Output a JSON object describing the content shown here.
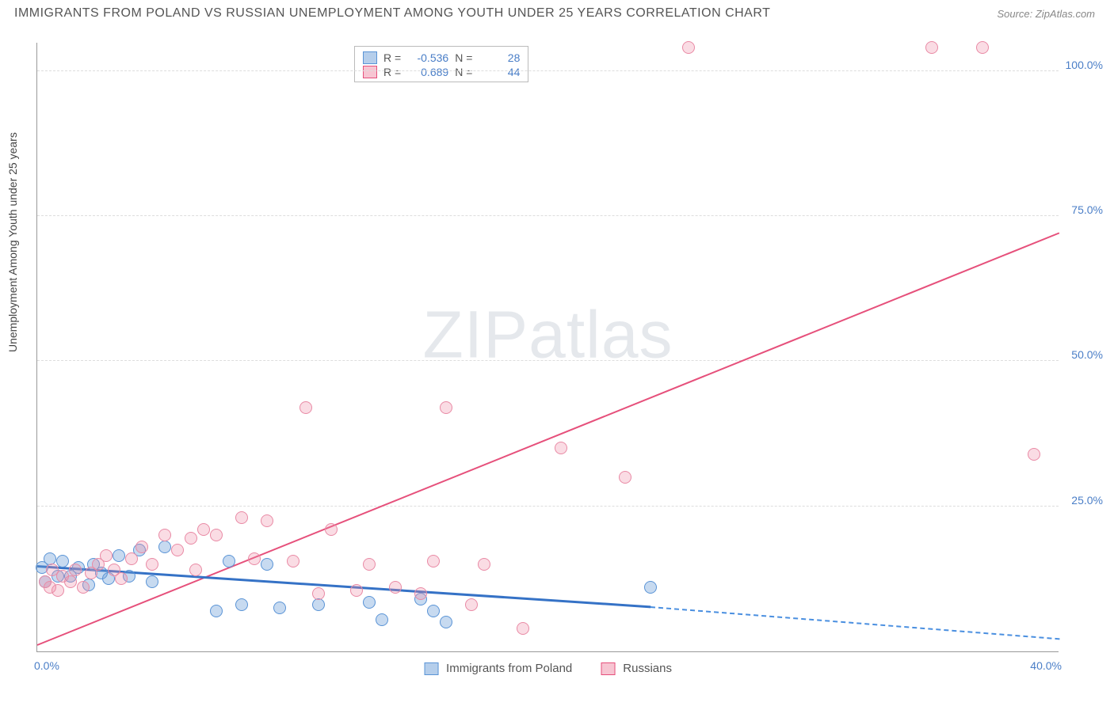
{
  "title": "IMMIGRANTS FROM POLAND VS RUSSIAN UNEMPLOYMENT AMONG YOUTH UNDER 25 YEARS CORRELATION CHART",
  "source": "Source: ZipAtlas.com",
  "y_axis_label": "Unemployment Among Youth under 25 years",
  "watermark_bold": "ZIP",
  "watermark_thin": "atlas",
  "chart": {
    "type": "scatter",
    "xlim": [
      0,
      40
    ],
    "ylim": [
      0,
      105
    ],
    "x_ticks": [
      {
        "value": 0,
        "label": "0.0%",
        "pos": "left"
      },
      {
        "value": 40,
        "label": "40.0%",
        "pos": "right"
      }
    ],
    "y_ticks": [
      {
        "value": 25,
        "label": "25.0%"
      },
      {
        "value": 50,
        "label": "50.0%"
      },
      {
        "value": 75,
        "label": "75.0%"
      },
      {
        "value": 100,
        "label": "100.0%"
      }
    ],
    "grid_color": "#dddddd",
    "background_color": "#ffffff",
    "series": [
      {
        "name": "Immigrants from Poland",
        "color_fill": "rgba(108,158,216,0.38)",
        "color_stroke": "#5a94d6",
        "line_color": "#3572c6",
        "marker_radius": 8,
        "R": "-0.536",
        "N": "28",
        "trend": {
          "x1": 0,
          "y1": 14.5,
          "x2": 24,
          "y2": 7.5,
          "x2_ext": 40,
          "y2_ext": 2.0
        },
        "points": [
          {
            "x": 0.2,
            "y": 14.5
          },
          {
            "x": 0.3,
            "y": 12
          },
          {
            "x": 0.5,
            "y": 16
          },
          {
            "x": 0.8,
            "y": 13
          },
          {
            "x": 1.0,
            "y": 15.5
          },
          {
            "x": 1.3,
            "y": 13
          },
          {
            "x": 1.6,
            "y": 14.5
          },
          {
            "x": 2.0,
            "y": 11.5
          },
          {
            "x": 2.2,
            "y": 15
          },
          {
            "x": 2.5,
            "y": 13.5
          },
          {
            "x": 2.8,
            "y": 12.5
          },
          {
            "x": 3.2,
            "y": 16.5
          },
          {
            "x": 3.6,
            "y": 13
          },
          {
            "x": 4.0,
            "y": 17.5
          },
          {
            "x": 4.5,
            "y": 12
          },
          {
            "x": 5.0,
            "y": 18
          },
          {
            "x": 7.0,
            "y": 7
          },
          {
            "x": 7.5,
            "y": 15.5
          },
          {
            "x": 8.0,
            "y": 8
          },
          {
            "x": 9.0,
            "y": 15
          },
          {
            "x": 9.5,
            "y": 7.5
          },
          {
            "x": 11.0,
            "y": 8
          },
          {
            "x": 13.0,
            "y": 8.5
          },
          {
            "x": 13.5,
            "y": 5.5
          },
          {
            "x": 15.0,
            "y": 9
          },
          {
            "x": 15.5,
            "y": 7
          },
          {
            "x": 16.0,
            "y": 5
          },
          {
            "x": 24.0,
            "y": 11
          }
        ]
      },
      {
        "name": "Russians",
        "color_fill": "rgba(240,140,165,0.30)",
        "color_stroke": "#e98aa5",
        "line_color": "#e6507b",
        "marker_radius": 8,
        "R": "0.689",
        "N": "44",
        "trend": {
          "x1": 0,
          "y1": 1,
          "x2": 40,
          "y2": 72
        },
        "points": [
          {
            "x": 0.3,
            "y": 12
          },
          {
            "x": 0.5,
            "y": 11
          },
          {
            "x": 0.6,
            "y": 14
          },
          {
            "x": 0.8,
            "y": 10.5
          },
          {
            "x": 1.0,
            "y": 13
          },
          {
            "x": 1.3,
            "y": 12
          },
          {
            "x": 1.5,
            "y": 14
          },
          {
            "x": 1.8,
            "y": 11
          },
          {
            "x": 2.1,
            "y": 13.5
          },
          {
            "x": 2.4,
            "y": 15
          },
          {
            "x": 2.7,
            "y": 16.5
          },
          {
            "x": 3.0,
            "y": 14
          },
          {
            "x": 3.3,
            "y": 12.5
          },
          {
            "x": 3.7,
            "y": 16
          },
          {
            "x": 4.1,
            "y": 18
          },
          {
            "x": 4.5,
            "y": 15
          },
          {
            "x": 5.0,
            "y": 20
          },
          {
            "x": 5.5,
            "y": 17.5
          },
          {
            "x": 6.0,
            "y": 19.5
          },
          {
            "x": 6.5,
            "y": 21
          },
          {
            "x": 7.0,
            "y": 20
          },
          {
            "x": 8.0,
            "y": 23
          },
          {
            "x": 8.5,
            "y": 16
          },
          {
            "x": 9.0,
            "y": 22.5
          },
          {
            "x": 10.0,
            "y": 15.5
          },
          {
            "x": 10.5,
            "y": 42
          },
          {
            "x": 11.0,
            "y": 10
          },
          {
            "x": 11.5,
            "y": 21
          },
          {
            "x": 12.5,
            "y": 10.5
          },
          {
            "x": 13.0,
            "y": 15
          },
          {
            "x": 14.0,
            "y": 11
          },
          {
            "x": 15.0,
            "y": 10
          },
          {
            "x": 15.5,
            "y": 15.5
          },
          {
            "x": 16.0,
            "y": 42
          },
          {
            "x": 17.0,
            "y": 8
          },
          {
            "x": 17.5,
            "y": 15
          },
          {
            "x": 19.0,
            "y": 4
          },
          {
            "x": 20.5,
            "y": 35
          },
          {
            "x": 23.0,
            "y": 30
          },
          {
            "x": 25.5,
            "y": 104
          },
          {
            "x": 35.0,
            "y": 104
          },
          {
            "x": 37.0,
            "y": 104
          },
          {
            "x": 39.0,
            "y": 34
          },
          {
            "x": 6.2,
            "y": 14
          }
        ]
      }
    ]
  },
  "top_legend_labels": {
    "R": "R =",
    "N": "N ="
  },
  "bottom_legend": [
    {
      "label": "Immigrants from Poland",
      "swatch": "blue"
    },
    {
      "label": "Russians",
      "swatch": "pink"
    }
  ]
}
